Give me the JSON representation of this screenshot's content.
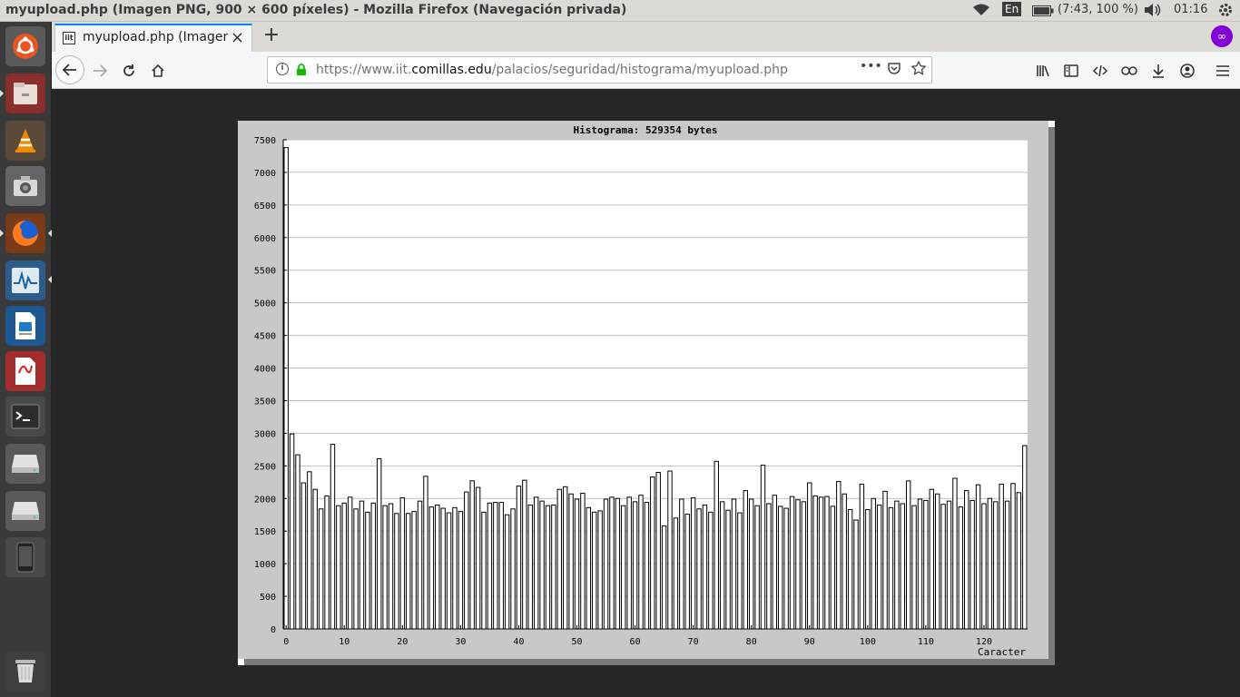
{
  "os": {
    "window_title": "myupload.php (Imagen PNG, 900 × 600 píxeles) - Mozilla Firefox (Navegación privada)",
    "keyboard_layout": "En",
    "battery": "(7:43, 100 %)",
    "clock": "01:16"
  },
  "launcher": {
    "items": [
      "ubuntu-dash",
      "files",
      "vlc",
      "camera",
      "firefox",
      "system-monitor",
      "libreoffice-impress",
      "document-viewer",
      "terminal",
      "drive-1",
      "drive-2",
      "phone",
      "trash"
    ]
  },
  "browser": {
    "tab_title": "myupload.php (Imagen PNG, 900 × 600 píxeles)",
    "tab_favicon_text": "iit",
    "new_tab": "+",
    "url_prefix": "https://www.iit.",
    "url_domain": "comillas.edu",
    "url_path": "/palacios/seguridad/histograma/myupload.php",
    "page_actions": "•••",
    "private_mask": "∞"
  },
  "chart_data": {
    "type": "bar",
    "title": "Histograma: 529354 bytes",
    "xlabel": "Caracter",
    "ylabel": "",
    "xlim": [
      0,
      127
    ],
    "ylim": [
      0,
      7500
    ],
    "yticks": [
      0,
      500,
      1000,
      1500,
      2000,
      2500,
      3000,
      3500,
      4000,
      4500,
      5000,
      5500,
      6000,
      6500,
      7000,
      7500
    ],
    "xticks": [
      0,
      10,
      20,
      30,
      40,
      50,
      60,
      70,
      80,
      90,
      100,
      110,
      120
    ],
    "grid": true,
    "colors": {
      "bar_fill": "#ffffff",
      "bar_edge": "#000000",
      "panel": "#c8c8c8",
      "plot_bg": "#ffffff",
      "grid": "#c0c0c0"
    },
    "x": [
      0,
      1,
      2,
      3,
      4,
      5,
      6,
      7,
      8,
      9,
      10,
      11,
      12,
      13,
      14,
      15,
      16,
      17,
      18,
      19,
      20,
      21,
      22,
      23,
      24,
      25,
      26,
      27,
      28,
      29,
      30,
      31,
      32,
      33,
      34,
      35,
      36,
      37,
      38,
      39,
      40,
      41,
      42,
      43,
      44,
      45,
      46,
      47,
      48,
      49,
      50,
      51,
      52,
      53,
      54,
      55,
      56,
      57,
      58,
      59,
      60,
      61,
      62,
      63,
      64,
      65,
      66,
      67,
      68,
      69,
      70,
      71,
      72,
      73,
      74,
      75,
      76,
      77,
      78,
      79,
      80,
      81,
      82,
      83,
      84,
      85,
      86,
      87,
      88,
      89,
      90,
      91,
      92,
      93,
      94,
      95,
      96,
      97,
      98,
      99,
      100,
      101,
      102,
      103,
      104,
      105,
      106,
      107,
      108,
      109,
      110,
      111,
      112,
      113,
      114,
      115,
      116,
      117,
      118,
      119,
      120,
      121,
      122,
      123,
      124,
      125,
      126,
      127
    ],
    "values": [
      7380,
      2990,
      2670,
      2240,
      2410,
      2140,
      1840,
      2040,
      2830,
      1890,
      1930,
      2020,
      1840,
      1960,
      1790,
      1930,
      2610,
      1890,
      1920,
      1770,
      2010,
      1770,
      1800,
      1960,
      2340,
      1870,
      1900,
      1850,
      1780,
      1860,
      1800,
      2100,
      2270,
      2170,
      1790,
      1930,
      1940,
      1940,
      1750,
      1840,
      2190,
      2280,
      1900,
      2020,
      1960,
      1890,
      1900,
      2140,
      2180,
      2070,
      1990,
      2080,
      1860,
      1790,
      1810,
      1990,
      2020,
      2000,
      1890,
      2020,
      1950,
      2050,
      1940,
      2330,
      2400,
      1580,
      2420,
      1700,
      1990,
      1760,
      2010,
      1840,
      1900,
      1790,
      2570,
      1950,
      1820,
      1990,
      1780,
      2120,
      1990,
      1890,
      2510,
      1920,
      2050,
      1880,
      1850,
      2030,
      1980,
      1950,
      2240,
      2040,
      2020,
      2030,
      1880,
      2260,
      2070,
      1830,
      1670,
      2220,
      1830,
      2000,
      1900,
      2110,
      1860,
      1960,
      1920,
      2270,
      1890,
      1990,
      1970,
      2140,
      2070,
      1910,
      1960,
      2310,
      1870,
      2120,
      1970,
      2210,
      1920,
      2000,
      1950,
      2220,
      1960,
      2230,
      2090,
      2810
    ]
  }
}
